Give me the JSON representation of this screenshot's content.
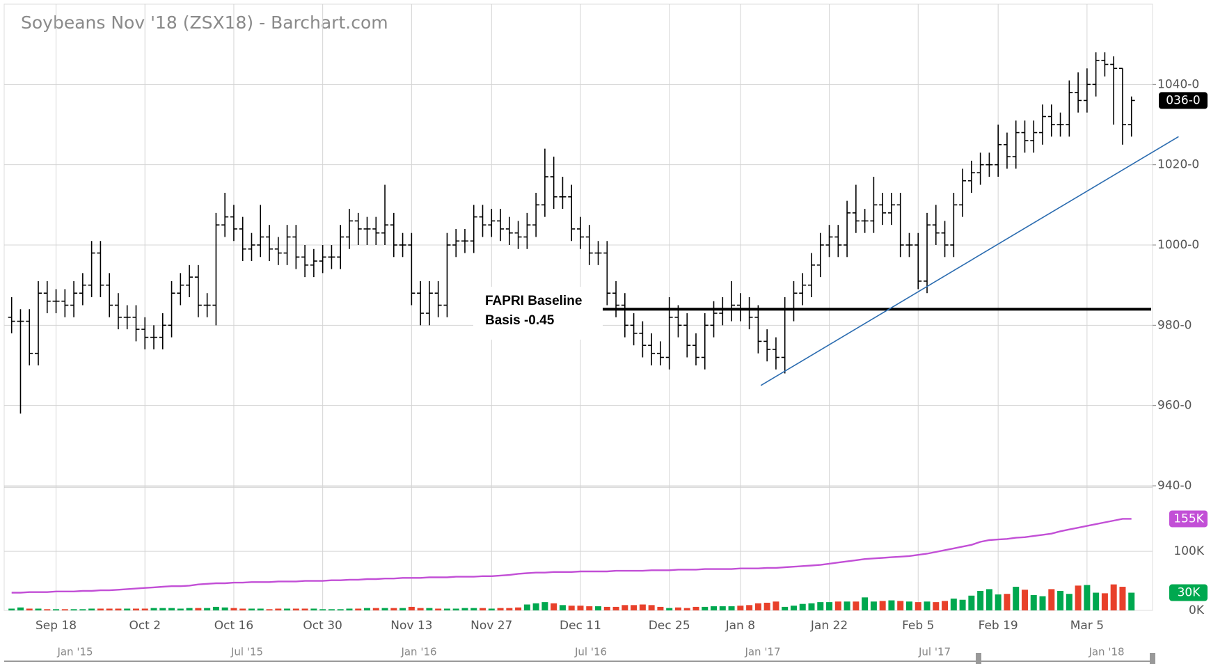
{
  "chart_data": {
    "type": "ohlc",
    "title": "Soybeans Nov '18 (ZSX18) - Barchart.com",
    "categories": [
      null,
      null,
      null,
      null,
      null,
      "Sep 18",
      null,
      null,
      null,
      null,
      null,
      null,
      null,
      null,
      null,
      "Oct 2",
      null,
      null,
      null,
      null,
      null,
      null,
      null,
      null,
      null,
      "Oct 16",
      null,
      null,
      null,
      null,
      null,
      null,
      null,
      null,
      null,
      "Oct 30",
      null,
      null,
      null,
      null,
      null,
      null,
      null,
      null,
      null,
      "Nov 13",
      null,
      null,
      null,
      null,
      null,
      null,
      null,
      null,
      "Nov 27",
      null,
      null,
      null,
      null,
      null,
      null,
      null,
      null,
      null,
      "Dec 11",
      null,
      null,
      null,
      null,
      null,
      null,
      null,
      null,
      null,
      "Dec 25",
      null,
      null,
      null,
      null,
      null,
      null,
      null,
      "Jan 8",
      null,
      null,
      null,
      null,
      null,
      null,
      null,
      null,
      null,
      "Jan 22",
      null,
      null,
      null,
      null,
      null,
      null,
      null,
      null,
      null,
      "Feb 5",
      null,
      null,
      null,
      null,
      null,
      null,
      null,
      null,
      "Feb 19",
      null,
      null,
      null,
      null,
      null,
      null,
      null,
      null,
      null,
      "Mar 5",
      null,
      null,
      null,
      null,
      null
    ],
    "open": [
      982,
      981,
      981,
      973,
      988,
      986,
      986,
      985,
      988,
      990,
      998,
      990,
      985,
      982,
      982,
      979,
      977,
      977,
      980,
      988,
      990,
      992,
      985,
      985,
      1005,
      1007,
      1004,
      999,
      1000,
      1002,
      999,
      998,
      1002,
      997,
      995,
      996,
      997,
      997,
      1002,
      1006,
      1004,
      1004,
      1003,
      1005,
      1000,
      1000,
      988,
      983,
      988,
      985,
      1000,
      1001,
      1001,
      1007,
      1005,
      1006,
      1004,
      1003,
      1002,
      1005,
      1010,
      1017,
      1012,
      1012,
      1004,
      1002,
      998,
      998,
      988,
      985,
      980,
      978,
      975,
      973,
      972,
      982,
      980,
      975,
      972,
      980,
      983,
      984,
      985,
      984,
      982,
      976,
      974,
      972,
      984,
      988,
      990,
      995,
      1000,
      1002,
      1000,
      1008,
      1006,
      1006,
      1010,
      1008,
      1010,
      1000,
      1000,
      991,
      1005,
      1003,
      1000,
      1010,
      1016,
      1018,
      1020,
      1020,
      1025,
      1022,
      1028,
      1026,
      1028,
      1032,
      1030,
      1030,
      1038,
      1036,
      1040,
      1046,
      1045,
      1044,
      1030
    ],
    "high": [
      987,
      984,
      984,
      991,
      991,
      989,
      989,
      991,
      993,
      1001,
      1001,
      993,
      988,
      985,
      985,
      982,
      980,
      983,
      991,
      993,
      995,
      995,
      988,
      1008,
      1013,
      1010,
      1007,
      1003,
      1010,
      1005,
      1002,
      1005,
      1005,
      1000,
      999,
      1000,
      1000,
      1005,
      1009,
      1008,
      1007,
      1007,
      1015,
      1008,
      1003,
      1003,
      991,
      991,
      991,
      1003,
      1004,
      1004,
      1010,
      1010,
      1009,
      1009,
      1007,
      1006,
      1008,
      1013,
      1024,
      1022,
      1017,
      1015,
      1007,
      1005,
      1001,
      1001,
      991,
      988,
      983,
      981,
      978,
      976,
      987,
      985,
      983,
      978,
      983,
      986,
      987,
      991,
      988,
      987,
      985,
      979,
      977,
      987,
      991,
      993,
      998,
      1003,
      1005,
      1005,
      1011,
      1015,
      1009,
      1017,
      1013,
      1013,
      1013,
      1003,
      1003,
      1008,
      1010,
      1006,
      1013,
      1019,
      1021,
      1023,
      1023,
      1030,
      1028,
      1031,
      1031,
      1031,
      1035,
      1035,
      1033,
      1041,
      1043,
      1044,
      1048,
      1048,
      1047,
      1044,
      1037
    ],
    "low": [
      978,
      958,
      970,
      970,
      983,
      983,
      982,
      982,
      985,
      987,
      987,
      982,
      979,
      979,
      976,
      974,
      974,
      974,
      977,
      985,
      987,
      982,
      982,
      980,
      1002,
      1001,
      996,
      996,
      997,
      996,
      995,
      995,
      994,
      992,
      992,
      993,
      994,
      994,
      999,
      1000,
      1000,
      1000,
      1000,
      997,
      997,
      985,
      980,
      980,
      982,
      982,
      997,
      998,
      998,
      1002,
      1002,
      1001,
      1000,
      999,
      999,
      1002,
      1007,
      1009,
      1009,
      1001,
      999,
      995,
      995,
      985,
      982,
      977,
      975,
      972,
      970,
      970,
      969,
      977,
      972,
      970,
      969,
      977,
      980,
      981,
      981,
      979,
      973,
      971,
      969,
      968,
      981,
      985,
      987,
      992,
      997,
      997,
      997,
      1003,
      1003,
      1003,
      1005,
      1005,
      997,
      997,
      989,
      988,
      1000,
      997,
      997,
      1007,
      1013,
      1015,
      1017,
      1017,
      1019,
      1019,
      1023,
      1023,
      1025,
      1027,
      1027,
      1027,
      1033,
      1033,
      1037,
      1042,
      1030,
      1025,
      1027
    ],
    "close": [
      981,
      981,
      973,
      988,
      986,
      986,
      985,
      988,
      990,
      998,
      990,
      985,
      982,
      982,
      979,
      977,
      977,
      980,
      988,
      990,
      992,
      985,
      985,
      1005,
      1007,
      1004,
      999,
      1000,
      1002,
      999,
      998,
      1002,
      997,
      995,
      996,
      997,
      997,
      1002,
      1006,
      1004,
      1004,
      1003,
      1005,
      1000,
      1000,
      988,
      983,
      988,
      985,
      1000,
      1001,
      1001,
      1007,
      1005,
      1006,
      1004,
      1003,
      1002,
      1005,
      1010,
      1017,
      1012,
      1012,
      1004,
      1002,
      998,
      998,
      988,
      985,
      980,
      978,
      975,
      973,
      972,
      982,
      980,
      975,
      972,
      980,
      983,
      984,
      985,
      984,
      982,
      976,
      974,
      972,
      984,
      988,
      990,
      995,
      1000,
      1002,
      1000,
      1008,
      1006,
      1006,
      1010,
      1008,
      1010,
      1000,
      1000,
      991,
      1005,
      1003,
      1000,
      1010,
      1016,
      1018,
      1020,
      1020,
      1025,
      1022,
      1028,
      1026,
      1028,
      1032,
      1030,
      1030,
      1038,
      1036,
      1040,
      1046,
      1045,
      1044,
      1030,
      1036
    ],
    "close_label": "036-0",
    "ylim": [
      940,
      1060
    ],
    "yticks": [
      {
        "value": 940,
        "label": "940-0"
      },
      {
        "value": 960,
        "label": "960-0"
      },
      {
        "value": 980,
        "label": "980-0"
      },
      {
        "value": 1000,
        "label": "1000-0"
      },
      {
        "value": 1020,
        "label": "1020-0"
      },
      {
        "value": 1040,
        "label": "1040-0"
      }
    ],
    "grid": true,
    "annotation": {
      "lines": [
        "FAPRI Baseline",
        "Basis -0.45"
      ],
      "value": 984
    },
    "trendline": {
      "x": [
        84.3,
        131.3
      ],
      "y": [
        965,
        1027
      ]
    },
    "volume": [
      3,
      5,
      3,
      3,
      2,
      2,
      2,
      2,
      2,
      3,
      3,
      3,
      3,
      3,
      3,
      3,
      4,
      4,
      4,
      3,
      4,
      4,
      4,
      6,
      5,
      4,
      3,
      3,
      3,
      2,
      3,
      3,
      3,
      3,
      3,
      2,
      2,
      2,
      3,
      3,
      4,
      4,
      4,
      4,
      4,
      6,
      4,
      4,
      3,
      3,
      3,
      4,
      4,
      4,
      3,
      4,
      4,
      5,
      10,
      12,
      14,
      12,
      9,
      8,
      8,
      7,
      7,
      6,
      6,
      9,
      9,
      10,
      9,
      6,
      4,
      5,
      4,
      6,
      6,
      7,
      7,
      7,
      8,
      9,
      12,
      13,
      15,
      6,
      8,
      11,
      12,
      14,
      14,
      15,
      15,
      15,
      22,
      15,
      16,
      17,
      16,
      15,
      14,
      15,
      14,
      16,
      20,
      18,
      25,
      33,
      36,
      27,
      28,
      40,
      35,
      26,
      24,
      36,
      33,
      28,
      42,
      43,
      30,
      29,
      44,
      40,
      30
    ],
    "volume_label": "30K",
    "open_interest": [
      30,
      30,
      31,
      31,
      31,
      32,
      32,
      32,
      33,
      33,
      34,
      34,
      35,
      36,
      37,
      38,
      39,
      40,
      41,
      41,
      42,
      44,
      45,
      46,
      46,
      47,
      47,
      48,
      48,
      48,
      49,
      49,
      49,
      50,
      50,
      50,
      51,
      51,
      52,
      52,
      53,
      53,
      54,
      54,
      55,
      55,
      55,
      56,
      56,
      56,
      57,
      57,
      57,
      58,
      58,
      59,
      60,
      62,
      63,
      64,
      64,
      65,
      65,
      65,
      66,
      66,
      66,
      66,
      67,
      67,
      67,
      67,
      68,
      68,
      68,
      69,
      69,
      69,
      70,
      70,
      70,
      70,
      71,
      71,
      71,
      72,
      72,
      73,
      74,
      75,
      76,
      77,
      79,
      81,
      83,
      85,
      87,
      88,
      89,
      90,
      91,
      92,
      94,
      96,
      99,
      102,
      105,
      108,
      111,
      116,
      119,
      120,
      121,
      123,
      124,
      126,
      128,
      130,
      134,
      137,
      140,
      143,
      146,
      149,
      152,
      155,
      155
    ],
    "open_interest_label": "155K",
    "vlim": [
      0,
      205
    ],
    "vticks": [
      {
        "value": 0,
        "label": "0K"
      },
      {
        "value": 100,
        "label": "100K"
      }
    ],
    "navigator_labels": [
      "Jan '15",
      "Jul '15",
      "Jan '16",
      "Jul '16",
      "Jan '17",
      "Jul '17",
      "Jan '18"
    ]
  }
}
